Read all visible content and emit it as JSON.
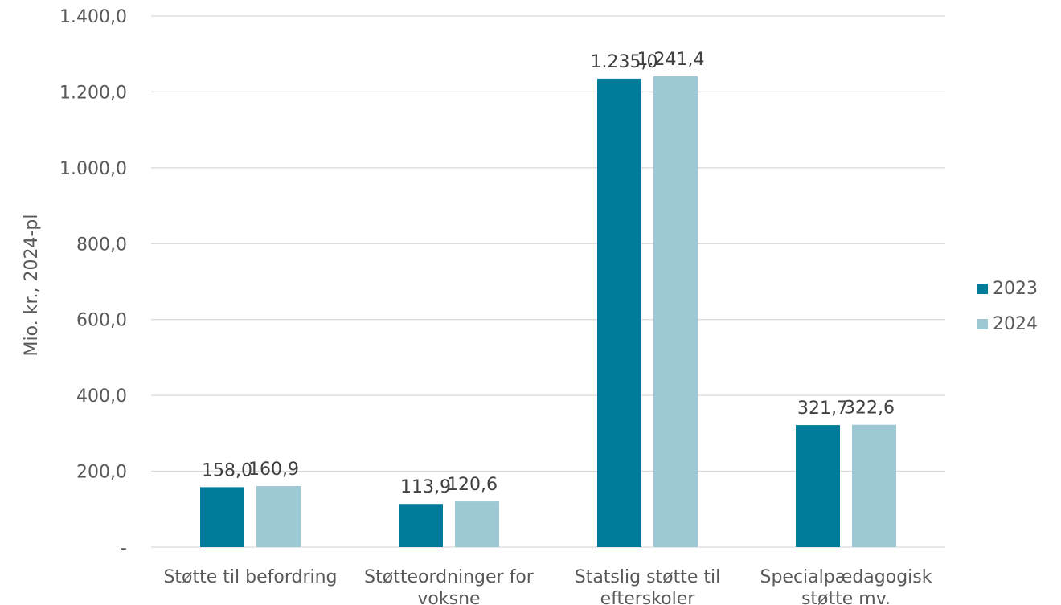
{
  "chart_data": {
    "type": "bar",
    "categories": [
      [
        "Støtte til befordring"
      ],
      [
        "Støtteordninger for",
        "voksne"
      ],
      [
        "Statslig støtte til",
        "efterskoler"
      ],
      [
        "Specialpædagogisk",
        "støtte mv."
      ]
    ],
    "series": [
      {
        "name": "2023",
        "color": "#007B9A",
        "values": [
          158.0,
          113.9,
          1235.0,
          321.7
        ],
        "labels": [
          "158,0",
          "113,9",
          "1.235,0",
          "321,7"
        ]
      },
      {
        "name": "2024",
        "color": "#9DC9D4",
        "values": [
          160.9,
          120.6,
          1241.4,
          322.6
        ],
        "labels": [
          "160,9",
          "120,6",
          "1.241,4",
          "322,6"
        ]
      }
    ],
    "ylabel": "Mio. kr., 2024-pl",
    "ylim": [
      0,
      1400
    ],
    "yticks": [
      0,
      200,
      400,
      600,
      800,
      1000,
      1200,
      1400
    ],
    "ytick_labels": [
      "-",
      "200,0",
      "400,0",
      "600,0",
      "800,0",
      "1.000,0",
      "1.200,0",
      "1.400,0"
    ],
    "grid": true,
    "legend": "right",
    "gridline_color": "#D9D9D9"
  }
}
